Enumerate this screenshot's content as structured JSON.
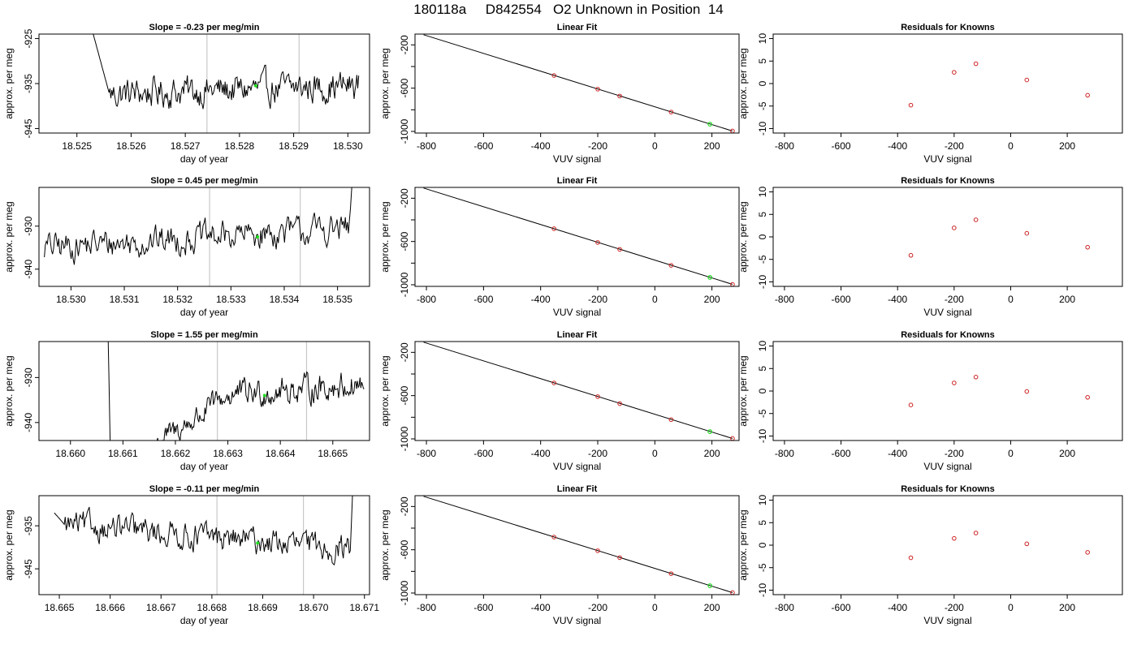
{
  "figure_title": "180118a     D842554   O2 Unknown in Position  14",
  "colors": {
    "line": "#000000",
    "known_point": "#cc2222",
    "unknown_point": "#22dd22",
    "vline": "#c8c8c8"
  },
  "chart_data": [
    {
      "type": "line",
      "panel": "trace-1",
      "title": "Slope =  -0.23  per meg/min",
      "xlabel": "day of year",
      "ylabel": "approx. per meg",
      "xlim": [
        18.5243,
        18.5304
      ],
      "ylim": [
        -946,
        -924
      ],
      "xticks": [
        18.525,
        18.526,
        18.527,
        18.528,
        18.529,
        18.53
      ],
      "xtick_labels": [
        "18.525",
        "18.526",
        "18.527",
        "18.528",
        "18.529",
        "18.530"
      ],
      "yticks": [
        -925,
        -935,
        -945
      ],
      "ytick_labels": [
        "-925",
        "-935",
        "-945"
      ],
      "x_start": 18.5251,
      "x_end": 18.5302,
      "vlines": [
        18.5274,
        18.5291
      ],
      "highlight_point": {
        "x": 18.5283,
        "y": -935.5
      },
      "trace_profile": {
        "initial": -915,
        "settle_after": 18.5256,
        "baseline_start": -937.5,
        "baseline_end": -935.5,
        "noise": 2.5
      }
    },
    {
      "type": "line",
      "panel": "trace-2",
      "title": "Slope =  0.45  per meg/min",
      "xlabel": "day of year",
      "ylabel": "approx. per meg",
      "xlim": [
        18.5294,
        18.5356
      ],
      "ylim": [
        -944,
        -921
      ],
      "xticks": [
        18.53,
        18.531,
        18.532,
        18.533,
        18.534,
        18.535
      ],
      "xtick_labels": [
        "18.530",
        "18.531",
        "18.532",
        "18.533",
        "18.534",
        "18.535"
      ],
      "yticks": [
        -930,
        -940
      ],
      "ytick_labels": [
        "-930",
        "-940"
      ],
      "x_start": 18.5295,
      "x_end": 18.5353,
      "vlines": [
        18.5326,
        18.5343
      ],
      "highlight_point": {
        "x": 18.5335,
        "y": -932.5
      },
      "trace_profile": {
        "initial": -935,
        "settle_after": 18.5295,
        "baseline_start": -935,
        "baseline_end": -930.5,
        "noise": 2.5,
        "tail": -915
      }
    },
    {
      "type": "line",
      "panel": "trace-3",
      "title": "Slope =  1.55  per meg/min",
      "xlabel": "day of year",
      "ylabel": "approx. per meg",
      "xlim": [
        18.6594,
        18.6657
      ],
      "ylim": [
        -944,
        -922
      ],
      "xticks": [
        18.66,
        18.661,
        18.662,
        18.663,
        18.664,
        18.665
      ],
      "xtick_labels": [
        "18.660",
        "18.661",
        "18.662",
        "18.663",
        "18.664",
        "18.665"
      ],
      "yticks": [
        -930,
        -940
      ],
      "ytick_labels": [
        "-930",
        "-940"
      ],
      "x_start": 18.6607,
      "x_end": 18.6656,
      "vlines": [
        18.6628,
        18.6645
      ],
      "highlight_point": {
        "x": 18.6637,
        "y": -934
      },
      "trace_profile": {
        "initial": -910,
        "drop_to": -970,
        "drop_at": 18.6608,
        "rise_from": 18.6616,
        "rise_to": 18.663,
        "rise_start_value": -945,
        "baseline_start": -936,
        "baseline_end": -931.5,
        "noise": 2.2
      }
    },
    {
      "type": "line",
      "panel": "trace-4",
      "title": "Slope =  -0.11  per meg/min",
      "xlabel": "day of year",
      "ylabel": "approx. per meg",
      "xlim": [
        18.6646,
        18.6711
      ],
      "ylim": [
        -951,
        -928
      ],
      "xticks": [
        18.665,
        18.666,
        18.667,
        18.668,
        18.669,
        18.67,
        18.671
      ],
      "xtick_labels": [
        "18.665",
        "18.666",
        "18.667",
        "18.668",
        "18.669",
        "18.670",
        "18.671"
      ],
      "yticks": [
        -935,
        -945
      ],
      "ytick_labels": [
        "-935",
        "-945"
      ],
      "x_start": 18.6649,
      "x_end": 18.6708,
      "vlines": [
        18.6681,
        18.6698
      ],
      "highlight_point": {
        "x": 18.6689,
        "y": -939
      },
      "trace_profile": {
        "initial": -932,
        "settle_after": 18.6651,
        "baseline_start": -934.5,
        "baseline_end": -940.5,
        "noise": 2.3,
        "tail": -915
      }
    },
    {
      "type": "scatter",
      "panel": "fit-1",
      "title": "Linear Fit",
      "xlabel": "VUV signal",
      "ylabel": "approx. per meg",
      "xlim": [
        -840,
        295
      ],
      "ylim": [
        -1015,
        -100
      ],
      "xticks": [
        -800,
        -600,
        -400,
        -200,
        0,
        200
      ],
      "xtick_labels": [
        "-800",
        "-600",
        "-400",
        "-200",
        "0",
        "200"
      ],
      "yticks": [
        -200,
        -600,
        -1000
      ],
      "ytick_labels": [
        "-200",
        "-600",
        "-1000"
      ],
      "yticks_minor": [
        -400,
        -800
      ],
      "fit_line": {
        "x": [
          -810,
          272
        ],
        "y": [
          -106,
          -996
        ]
      },
      "knowns": [
        {
          "x": -353,
          "y": -483
        },
        {
          "x": -200,
          "y": -609
        },
        {
          "x": -123,
          "y": -673
        },
        {
          "x": 57,
          "y": -821
        },
        {
          "x": 272,
          "y": -996
        }
      ],
      "unknown": {
        "x": 193,
        "y": -933
      }
    },
    {
      "type": "scatter",
      "panel": "fit-2",
      "title": "Linear Fit",
      "xlabel": "VUV signal",
      "ylabel": "approx. per meg",
      "xlim": [
        -840,
        295
      ],
      "ylim": [
        -1015,
        -100
      ],
      "xticks": [
        -800,
        -600,
        -400,
        -200,
        0,
        200
      ],
      "xtick_labels": [
        "-800",
        "-600",
        "-400",
        "-200",
        "0",
        "200"
      ],
      "yticks": [
        -200,
        -600,
        -1000
      ],
      "ytick_labels": [
        "-200",
        "-600",
        "-1000"
      ],
      "yticks_minor": [
        -400,
        -800
      ],
      "fit_line": {
        "x": [
          -810,
          272
        ],
        "y": [
          -106,
          -996
        ]
      },
      "knowns": [
        {
          "x": -353,
          "y": -482
        },
        {
          "x": -200,
          "y": -609
        },
        {
          "x": -123,
          "y": -673
        },
        {
          "x": 57,
          "y": -821
        },
        {
          "x": 272,
          "y": -997
        }
      ],
      "unknown": {
        "x": 193,
        "y": -932
      }
    },
    {
      "type": "scatter",
      "panel": "fit-3",
      "title": "Linear Fit",
      "xlabel": "VUV signal",
      "ylabel": "approx. per meg",
      "xlim": [
        -840,
        295
      ],
      "ylim": [
        -1015,
        -100
      ],
      "xticks": [
        -800,
        -600,
        -400,
        -200,
        0,
        200
      ],
      "xtick_labels": [
        "-800",
        "-600",
        "-400",
        "-200",
        "0",
        "200"
      ],
      "yticks": [
        -200,
        -600,
        -1000
      ],
      "ytick_labels": [
        "-200",
        "-600",
        "-1000"
      ],
      "yticks_minor": [
        -400,
        -800
      ],
      "fit_line": {
        "x": [
          -810,
          272
        ],
        "y": [
          -106,
          -996
        ]
      },
      "knowns": [
        {
          "x": -353,
          "y": -483
        },
        {
          "x": -200,
          "y": -609
        },
        {
          "x": -123,
          "y": -674
        },
        {
          "x": 57,
          "y": -822
        },
        {
          "x": 272,
          "y": -996
        }
      ],
      "unknown": {
        "x": 193,
        "y": -933
      }
    },
    {
      "type": "scatter",
      "panel": "fit-4",
      "title": "Linear Fit",
      "xlabel": "VUV signal",
      "ylabel": "approx. per meg",
      "xlim": [
        -840,
        295
      ],
      "ylim": [
        -1015,
        -100
      ],
      "xticks": [
        -800,
        -600,
        -400,
        -200,
        0,
        200
      ],
      "xtick_labels": [
        "-800",
        "-600",
        "-400",
        "-200",
        "0",
        "200"
      ],
      "yticks": [
        -200,
        -600,
        -1000
      ],
      "ytick_labels": [
        "-200",
        "-600",
        "-1000"
      ],
      "yticks_minor": [
        -400,
        -800
      ],
      "fit_line": {
        "x": [
          -810,
          272
        ],
        "y": [
          -106,
          -996
        ]
      },
      "knowns": [
        {
          "x": -353,
          "y": -483
        },
        {
          "x": -200,
          "y": -609
        },
        {
          "x": -123,
          "y": -673
        },
        {
          "x": 57,
          "y": -821
        },
        {
          "x": 272,
          "y": -996
        }
      ],
      "unknown": {
        "x": 193,
        "y": -933
      }
    },
    {
      "type": "scatter",
      "panel": "residuals-1",
      "title": "Residuals for Knowns",
      "xlabel": "VUV signal",
      "ylabel": "approx. per meg",
      "xlim": [
        -840,
        395
      ],
      "ylim": [
        -11,
        11
      ],
      "xticks": [
        -800,
        -600,
        -400,
        -200,
        0,
        200
      ],
      "xtick_labels": [
        "-800",
        "-600",
        "-400",
        "-200",
        "0",
        "200"
      ],
      "yticks": [
        10,
        5,
        0,
        -5,
        -10
      ],
      "ytick_labels": [
        "10",
        "5",
        "0",
        "-5",
        "-10"
      ],
      "points": [
        {
          "x": -353,
          "y": -4.8
        },
        {
          "x": -200,
          "y": 2.5
        },
        {
          "x": -123,
          "y": 4.4
        },
        {
          "x": 57,
          "y": 0.8
        },
        {
          "x": 272,
          "y": -2.6
        }
      ]
    },
    {
      "type": "scatter",
      "panel": "residuals-2",
      "title": "Residuals for Knowns",
      "xlabel": "VUV signal",
      "ylabel": "approx. per meg",
      "xlim": [
        -840,
        395
      ],
      "ylim": [
        -11,
        11
      ],
      "xticks": [
        -800,
        -600,
        -400,
        -200,
        0,
        200
      ],
      "xtick_labels": [
        "-800",
        "-600",
        "-400",
        "-200",
        "0",
        "200"
      ],
      "yticks": [
        10,
        5,
        0,
        -5,
        -10
      ],
      "ytick_labels": [
        "10",
        "5",
        "0",
        "-5",
        "-10"
      ],
      "points": [
        {
          "x": -353,
          "y": -4.1
        },
        {
          "x": -200,
          "y": 2.0
        },
        {
          "x": -123,
          "y": 3.8
        },
        {
          "x": 57,
          "y": 0.8
        },
        {
          "x": 272,
          "y": -2.3
        }
      ]
    },
    {
      "type": "scatter",
      "panel": "residuals-3",
      "title": "Residuals for Knowns",
      "xlabel": "VUV signal",
      "ylabel": "approx. per meg",
      "xlim": [
        -840,
        395
      ],
      "ylim": [
        -11,
        11
      ],
      "xticks": [
        -800,
        -600,
        -400,
        -200,
        0,
        200
      ],
      "xtick_labels": [
        "-800",
        "-600",
        "-400",
        "-200",
        "0",
        "200"
      ],
      "yticks": [
        10,
        5,
        0,
        -5,
        -10
      ],
      "ytick_labels": [
        "10",
        "5",
        "0",
        "-5",
        "-10"
      ],
      "points": [
        {
          "x": -353,
          "y": -3.1
        },
        {
          "x": -200,
          "y": 1.8
        },
        {
          "x": -123,
          "y": 3.1
        },
        {
          "x": 57,
          "y": -0.1
        },
        {
          "x": 272,
          "y": -1.4
        }
      ]
    },
    {
      "type": "scatter",
      "panel": "residuals-4",
      "title": "Residuals for Knowns",
      "xlabel": "VUV signal",
      "ylabel": "approx. per meg",
      "xlim": [
        -840,
        395
      ],
      "ylim": [
        -11,
        11
      ],
      "xticks": [
        -800,
        -600,
        -400,
        -200,
        0,
        200
      ],
      "xtick_labels": [
        "-800",
        "-600",
        "-400",
        "-200",
        "0",
        "200"
      ],
      "yticks": [
        10,
        5,
        0,
        -5,
        -10
      ],
      "ytick_labels": [
        "10",
        "5",
        "0",
        "-5",
        "-10"
      ],
      "points": [
        {
          "x": -353,
          "y": -2.8
        },
        {
          "x": -200,
          "y": 1.5
        },
        {
          "x": -123,
          "y": 2.7
        },
        {
          "x": 57,
          "y": 0.3
        },
        {
          "x": 272,
          "y": -1.6
        }
      ]
    }
  ]
}
